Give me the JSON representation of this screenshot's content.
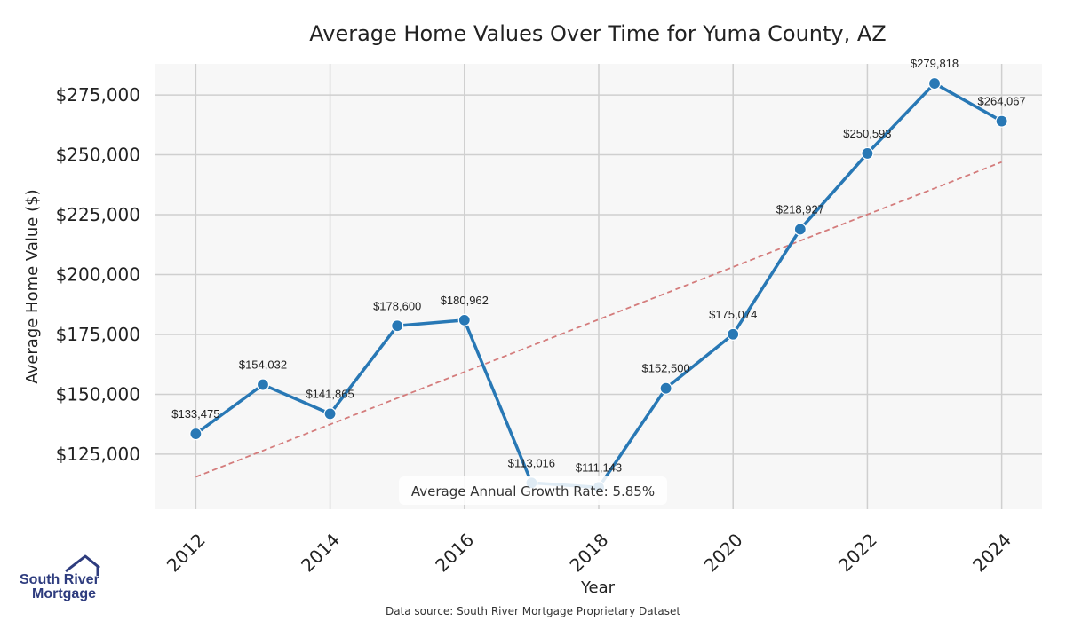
{
  "chart_data": {
    "type": "line",
    "title": "Average Home Values Over Time for Yuma County, AZ",
    "xlabel": "Year",
    "ylabel": "Average Home Value ($)",
    "x": [
      2012,
      2013,
      2014,
      2015,
      2016,
      2017,
      2018,
      2019,
      2020,
      2021,
      2022,
      2023,
      2024
    ],
    "values": [
      133475,
      154032,
      141865,
      178600,
      180962,
      113016,
      111143,
      152500,
      175074,
      218927,
      250593,
      279818,
      264067
    ],
    "data_labels": [
      "$133,475",
      "$154,032",
      "$141,865",
      "$178,600",
      "$180,962",
      "$113,016",
      "$111,143",
      "$152,500",
      "$175,074",
      "$218,927",
      "$250,593",
      "$279,818",
      "$264,067"
    ],
    "x_ticks": [
      "2012",
      "2014",
      "2016",
      "2018",
      "2020",
      "2022",
      "2024"
    ],
    "y_ticks": [
      125000,
      150000,
      175000,
      200000,
      225000,
      250000,
      275000
    ],
    "y_tick_labels": [
      "$125,000",
      "$150,000",
      "$175,000",
      "$200,000",
      "$225,000",
      "$250,000",
      "$275,000"
    ],
    "xlim": [
      2011.4,
      2024.6
    ],
    "ylim": [
      102000,
      288000
    ],
    "trend_line": {
      "x": [
        2012,
        2024
      ],
      "y": [
        115500,
        247000
      ]
    },
    "annotation": "Average Annual Growth Rate: 5.85%",
    "grid": true,
    "line_color": "#2878b5",
    "trend_color": "#d47c7c",
    "plot_background": "#f7f7f7",
    "grid_color": "#cfcfcf"
  },
  "footer": {
    "source": "Data source: South River Mortgage Proprietary Dataset"
  },
  "logo": {
    "line1": "South River",
    "line2": "Mortgage",
    "color": "#2e3c7e"
  }
}
